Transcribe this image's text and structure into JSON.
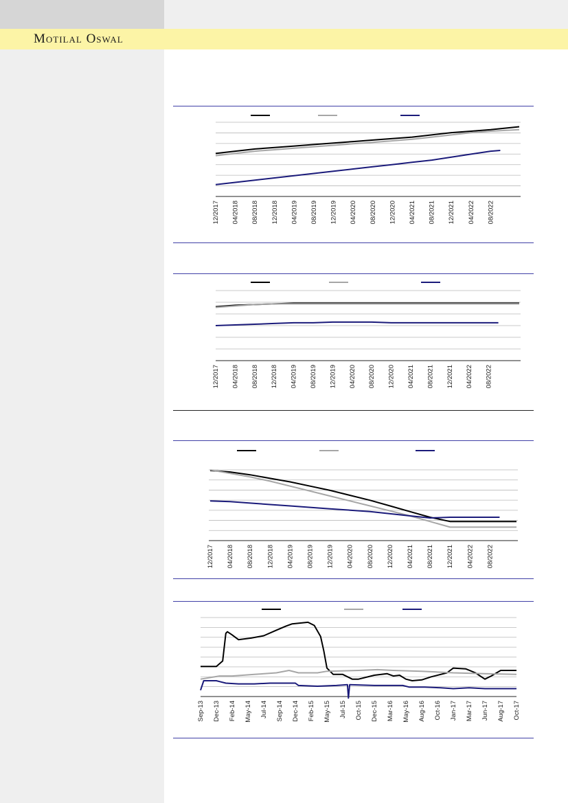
{
  "brand": {
    "name": "Motilal Oswal"
  },
  "colors": {
    "black_series": "#000000",
    "grey_series": "#a6a6a6",
    "blue_series": "#1a1a7a",
    "grid": "#b9b9b9",
    "rule": "#3f3fa6",
    "band": "#fcf4a6"
  },
  "chart_data": [
    {
      "type": "line",
      "x": [
        "12/2017",
        "04/2018",
        "08/2018",
        "12/2018",
        "04/2019",
        "08/2019",
        "12/2019",
        "04/2020",
        "08/2020",
        "12/2020",
        "04/2021",
        "08/2021",
        "12/2021",
        "04/2022",
        "08/2022"
      ],
      "series": [
        {
          "values": [
            0.58,
            0.61,
            0.64,
            0.66,
            0.68,
            0.7,
            0.72,
            0.74,
            0.76,
            0.78,
            0.8,
            0.83,
            0.86,
            0.88,
            0.9
          ],
          "end": 0.94
        },
        {
          "values": [
            0.55,
            0.58,
            0.61,
            0.63,
            0.65,
            0.67,
            0.69,
            0.71,
            0.73,
            0.75,
            0.77,
            0.8,
            0.83,
            0.86,
            0.88
          ],
          "end": 0.9
        },
        {
          "values": [
            0.16,
            0.19,
            0.22,
            0.25,
            0.28,
            0.31,
            0.34,
            0.37,
            0.4,
            0.43,
            0.46,
            0.49,
            0.53,
            0.57,
            0.61
          ],
          "end": 0.62
        }
      ],
      "grid_lines": 7,
      "grid": true,
      "legend": "top-center"
    },
    {
      "type": "line",
      "x": [
        "12/2017",
        "04/2018",
        "08/2018",
        "12/2018",
        "04/2019",
        "08/2019",
        "12/2019",
        "04/2020",
        "08/2020",
        "12/2020",
        "04/2021",
        "08/2021",
        "12/2021",
        "04/2022",
        "08/2022"
      ],
      "series": [
        {
          "values": [
            0.77,
            0.79,
            0.8,
            0.81,
            0.82,
            0.82,
            0.82,
            0.82,
            0.82,
            0.82,
            0.82,
            0.82,
            0.82,
            0.82,
            0.82
          ],
          "end": 0.82
        },
        {
          "values": [
            0.76,
            0.78,
            0.8,
            0.81,
            0.81,
            0.81,
            0.81,
            0.81,
            0.81,
            0.81,
            0.81,
            0.81,
            0.81,
            0.81,
            0.81
          ],
          "end": 0.81
        },
        {
          "values": [
            0.5,
            0.51,
            0.52,
            0.53,
            0.54,
            0.54,
            0.55,
            0.55,
            0.55,
            0.54,
            0.54,
            0.54,
            0.54,
            0.54,
            0.54
          ],
          "end": 0.54
        }
      ],
      "grid_lines": 6,
      "grid": true,
      "legend": "top-center"
    },
    {
      "type": "line",
      "x": [
        "12/2017",
        "04/2018",
        "08/2018",
        "12/2018",
        "04/2019",
        "08/2019",
        "12/2019",
        "04/2020",
        "08/2020",
        "12/2020",
        "04/2021",
        "08/2021",
        "12/2021",
        "04/2022",
        "08/2022"
      ],
      "series": [
        {
          "values": [
            0.99,
            0.97,
            0.93,
            0.88,
            0.83,
            0.77,
            0.71,
            0.64,
            0.57,
            0.49,
            0.41,
            0.33,
            0.27,
            0.27,
            0.27
          ],
          "end": 0.27
        },
        {
          "values": [
            1.0,
            0.95,
            0.9,
            0.84,
            0.77,
            0.7,
            0.63,
            0.56,
            0.49,
            0.42,
            0.35,
            0.27,
            0.19,
            0.19,
            0.19
          ],
          "end": 0.19
        },
        {
          "values": [
            0.56,
            0.55,
            0.53,
            0.51,
            0.49,
            0.47,
            0.45,
            0.43,
            0.41,
            0.38,
            0.35,
            0.32,
            0.33,
            0.33,
            0.33
          ],
          "end": 0.33
        }
      ],
      "grid_lines": 7,
      "grid": true,
      "legend": "top-center"
    },
    {
      "type": "line",
      "x": [
        "Sep-13",
        "Dec-13",
        "Feb-14",
        "May-14",
        "Jul-14",
        "Sep-14",
        "Dec-14",
        "Feb-15",
        "May-15",
        "Jul-15",
        "Oct-15",
        "Dec-15",
        "Mar-16",
        "May-16",
        "Aug-16",
        "Oct-16",
        "Jan-17",
        "Mar-17",
        "Jun-17",
        "Aug-17",
        "Oct-17"
      ],
      "series": [
        {
          "points": [
            [
              0,
              0.38
            ],
            [
              0.05,
              0.38
            ],
            [
              0.07,
              0.45
            ],
            [
              0.08,
              0.8
            ],
            [
              0.085,
              0.82
            ],
            [
              0.1,
              0.78
            ],
            [
              0.12,
              0.72
            ],
            [
              0.16,
              0.74
            ],
            [
              0.2,
              0.77
            ],
            [
              0.24,
              0.84
            ],
            [
              0.27,
              0.89
            ],
            [
              0.29,
              0.92
            ],
            [
              0.34,
              0.94
            ],
            [
              0.36,
              0.9
            ],
            [
              0.38,
              0.76
            ],
            [
              0.39,
              0.58
            ],
            [
              0.4,
              0.36
            ],
            [
              0.42,
              0.28
            ],
            [
              0.45,
              0.28
            ],
            [
              0.48,
              0.22
            ],
            [
              0.5,
              0.22
            ],
            [
              0.55,
              0.27
            ],
            [
              0.59,
              0.29
            ],
            [
              0.61,
              0.26
            ],
            [
              0.63,
              0.27
            ],
            [
              0.65,
              0.22
            ],
            [
              0.67,
              0.2
            ],
            [
              0.7,
              0.21
            ],
            [
              0.73,
              0.25
            ],
            [
              0.78,
              0.3
            ],
            [
              0.8,
              0.36
            ],
            [
              0.84,
              0.35
            ],
            [
              0.87,
              0.3
            ],
            [
              0.9,
              0.22
            ],
            [
              0.92,
              0.26
            ],
            [
              0.95,
              0.33
            ],
            [
              1.0,
              0.33
            ]
          ]
        },
        {
          "points": [
            [
              0,
              0.22
            ],
            [
              0.06,
              0.26
            ],
            [
              0.1,
              0.26
            ],
            [
              0.17,
              0.28
            ],
            [
              0.24,
              0.3
            ],
            [
              0.28,
              0.33
            ],
            [
              0.31,
              0.3
            ],
            [
              0.37,
              0.3
            ],
            [
              0.4,
              0.32
            ],
            [
              0.5,
              0.33
            ],
            [
              0.56,
              0.34
            ],
            [
              0.61,
              0.33
            ],
            [
              0.7,
              0.32
            ],
            [
              0.8,
              0.3
            ],
            [
              0.9,
              0.29
            ],
            [
              1.0,
              0.28
            ]
          ]
        },
        {
          "points": [
            [
              0,
              0.08
            ],
            [
              0.01,
              0.2
            ],
            [
              0.05,
              0.2
            ],
            [
              0.06,
              0.19
            ],
            [
              0.08,
              0.17
            ],
            [
              0.12,
              0.16
            ],
            [
              0.17,
              0.16
            ],
            [
              0.22,
              0.17
            ],
            [
              0.3,
              0.17
            ],
            [
              0.31,
              0.14
            ],
            [
              0.37,
              0.13
            ],
            [
              0.43,
              0.14
            ],
            [
              0.465,
              0.15
            ],
            [
              0.468,
              -0.02
            ],
            [
              0.472,
              0.15
            ],
            [
              0.55,
              0.14
            ],
            [
              0.6,
              0.14
            ],
            [
              0.64,
              0.14
            ],
            [
              0.66,
              0.12
            ],
            [
              0.71,
              0.12
            ],
            [
              0.76,
              0.11
            ],
            [
              0.8,
              0.1
            ],
            [
              0.85,
              0.11
            ],
            [
              0.9,
              0.1
            ],
            [
              1.0,
              0.1
            ]
          ]
        }
      ],
      "grid_lines": 8,
      "grid": true,
      "legend": "top-center"
    }
  ]
}
